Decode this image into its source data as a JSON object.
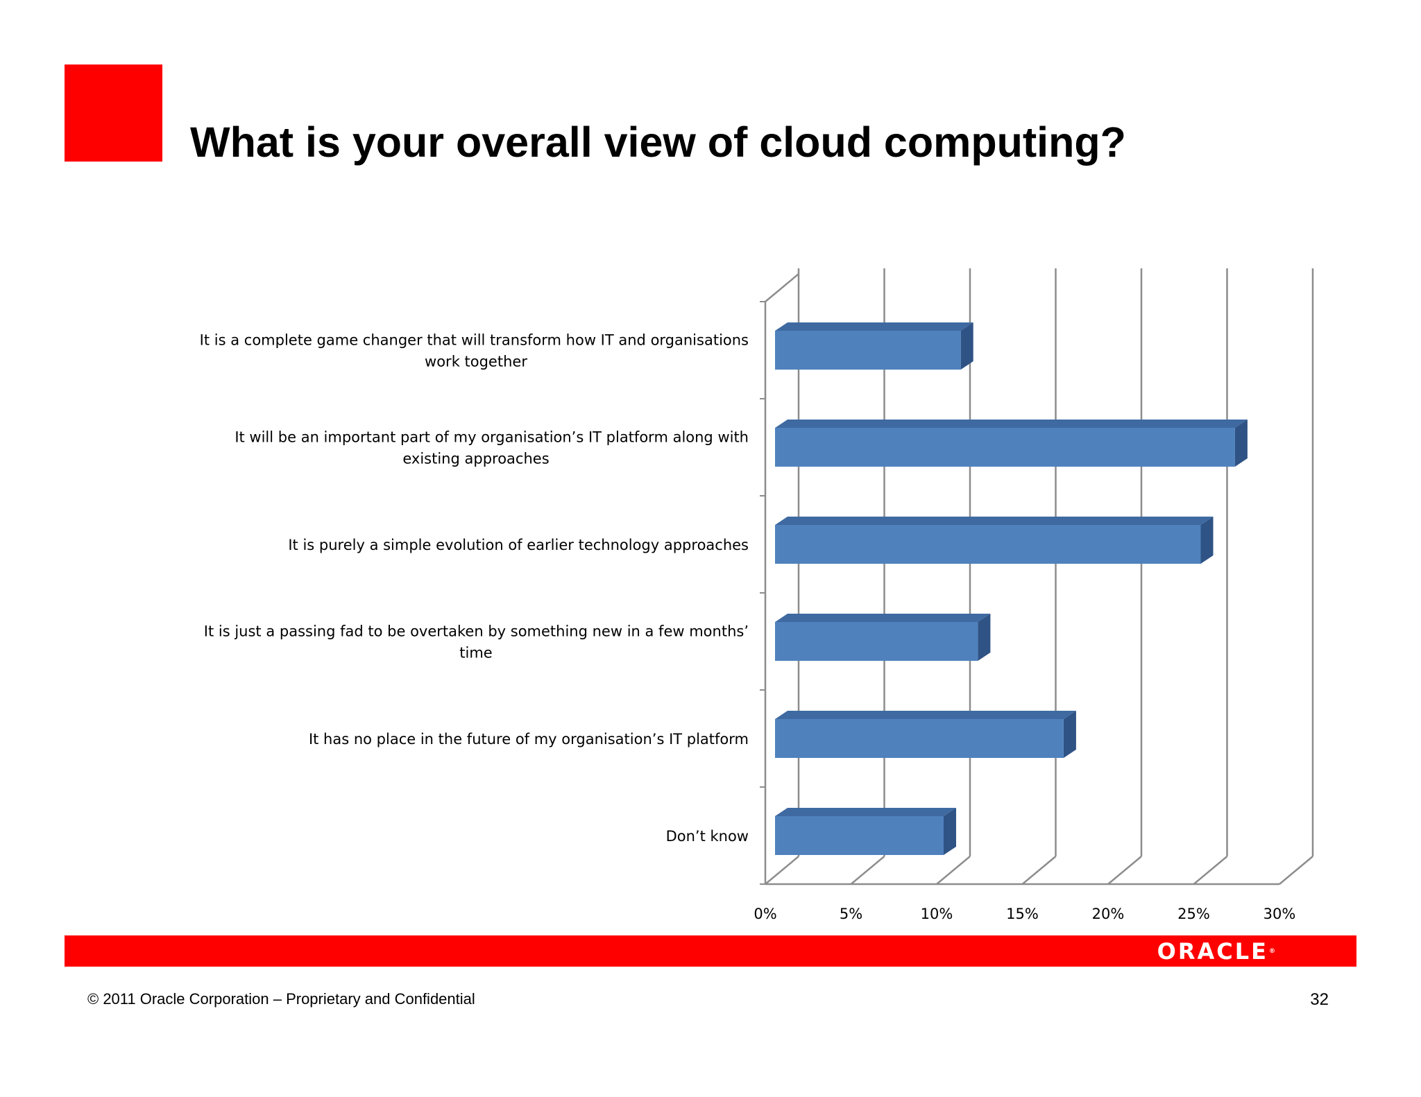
{
  "slide": {
    "title": "What is your overall view of cloud computing?",
    "copyright": "© 2011 Oracle Corporation – Proprietary and Confidential",
    "page_number": "32",
    "logo_text": "ORACLE",
    "logo_mark": "®",
    "colors": {
      "accent_red": "#ff0000",
      "bar_front": "#4f81bd",
      "bar_top": "#3f6aa1",
      "bar_side": "#2f5385",
      "grid": "#8c8c8c"
    }
  },
  "chart_data": {
    "type": "bar",
    "orientation": "horizontal",
    "style": "3d-clustered",
    "categories": [
      [
        "It is a complete game changer that will transform how IT and organisations",
        "work together"
      ],
      [
        "It will be an important part of my organisation’s IT platform along with",
        "existing approaches"
      ],
      [
        "It is purely a simple evolution of earlier technology approaches"
      ],
      [
        "It is just a passing fad to be overtaken by something new in a few months’",
        "time"
      ],
      [
        "It has no place in the future of my organisation’s IT platform"
      ],
      [
        "Don’t know"
      ]
    ],
    "values": [
      11,
      27,
      25,
      12,
      17,
      10
    ],
    "xlim": [
      0,
      30
    ],
    "xticks": [
      0,
      5,
      10,
      15,
      20,
      25,
      30
    ],
    "xtick_labels": [
      "0%",
      "5%",
      "10%",
      "15%",
      "20%",
      "25%",
      "30%"
    ],
    "grid": true,
    "legend": false
  }
}
